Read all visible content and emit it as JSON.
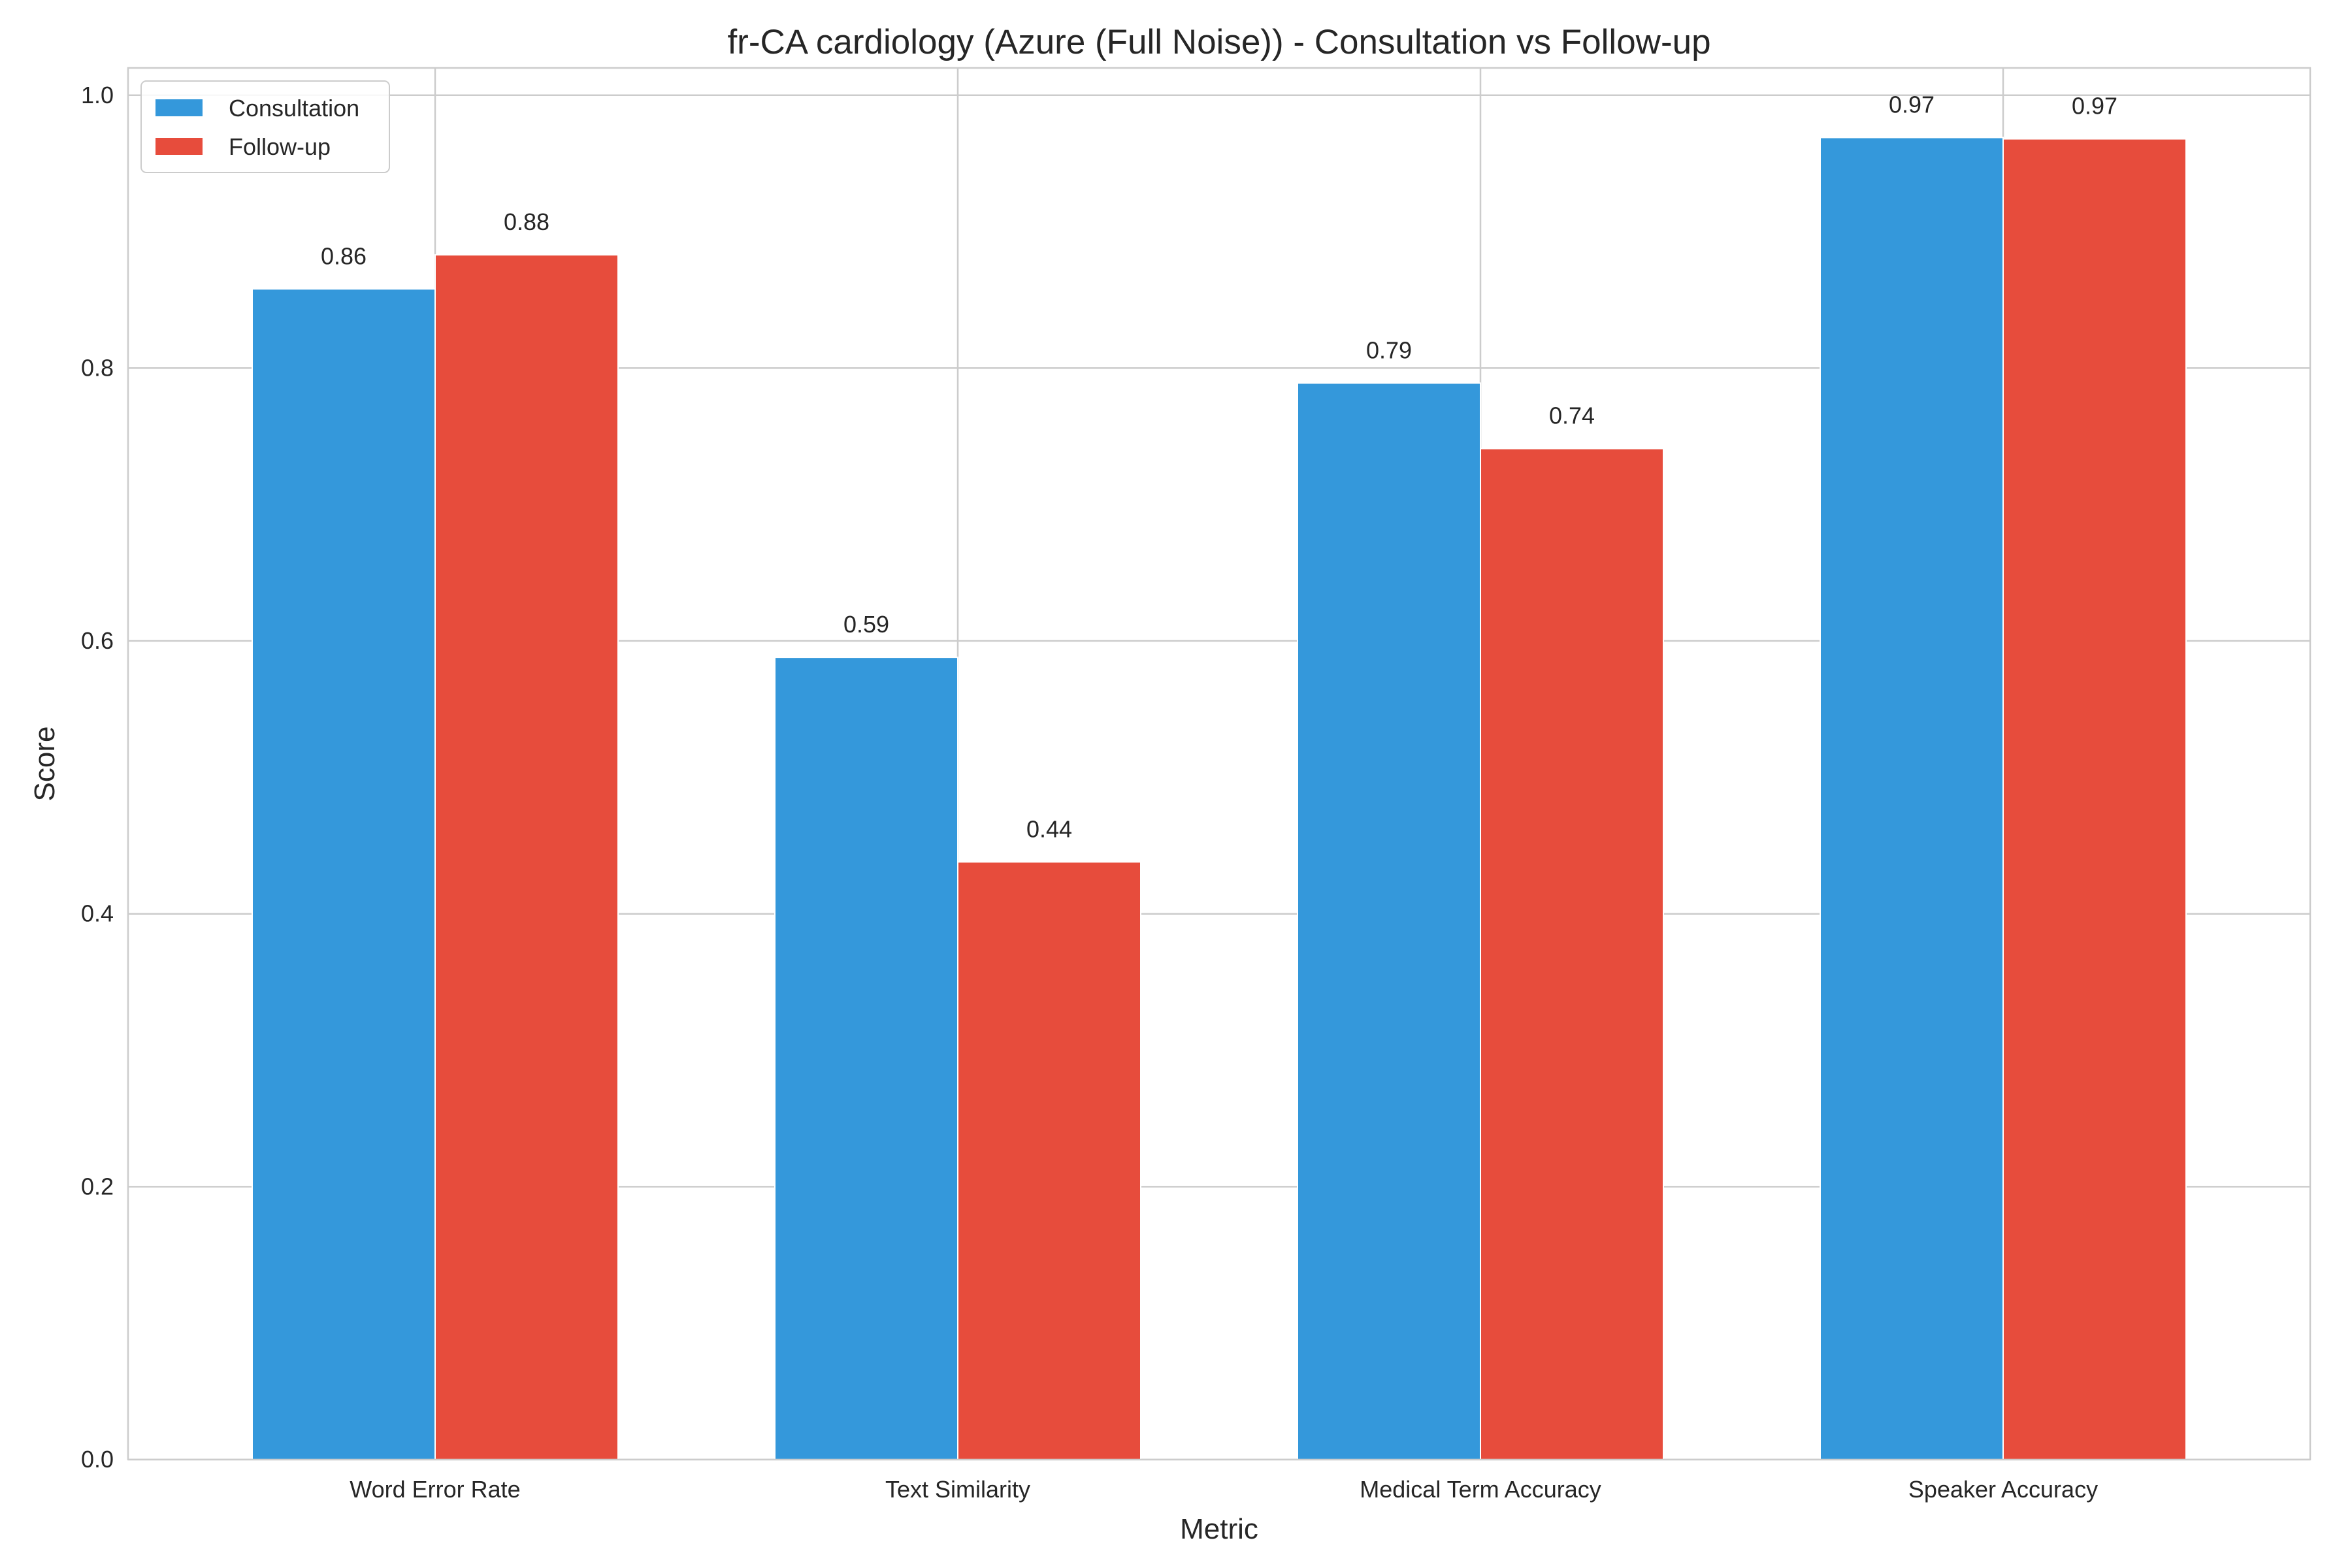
{
  "chart_data": {
    "type": "bar",
    "title": "fr-CA cardiology (Azure (Full Noise)) - Consultation vs Follow-up",
    "xlabel": "Metric",
    "ylabel": "Score",
    "categories": [
      "Word Error Rate",
      "Text Similarity",
      "Medical Term Accuracy",
      "Speaker Accuracy"
    ],
    "series": [
      {
        "name": "Consultation",
        "color": "#3498db",
        "values": [
          0.858,
          0.588,
          0.789,
          0.969
        ],
        "labels": [
          "0.86",
          "0.59",
          "0.79",
          "0.97"
        ]
      },
      {
        "name": "Follow-up",
        "color": "#e74c3c",
        "values": [
          0.883,
          0.438,
          0.741,
          0.968
        ],
        "labels": [
          "0.88",
          "0.44",
          "0.74",
          "0.97"
        ]
      }
    ],
    "ylim": [
      0,
      1.02
    ],
    "yticks": [
      0.0,
      0.2,
      0.4,
      0.6,
      0.8,
      1.0
    ],
    "ytick_labels": [
      "0.0",
      "0.2",
      "0.4",
      "0.6",
      "0.8",
      "1.0"
    ],
    "grid": true,
    "legend_position": "top-left"
  }
}
